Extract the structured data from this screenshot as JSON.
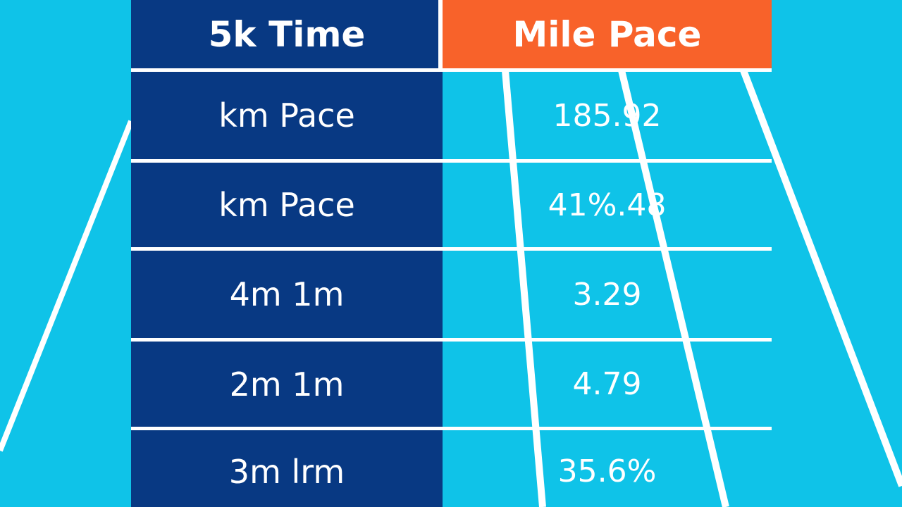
{
  "colors": {
    "background": "#0fc3e8",
    "left_column": "#083983",
    "header_accent": "#f8622a",
    "lines": "#ffffff"
  },
  "table": {
    "headers": {
      "time": "5k Time",
      "pace": "Mile Pace"
    },
    "rows": [
      {
        "time": "km Pace",
        "pace": "185.92"
      },
      {
        "time": "km Pace",
        "pace": "41%.48"
      },
      {
        "time": "4m 1m",
        "pace": "3.29"
      },
      {
        "time": "2m 1m",
        "pace": "4.79"
      },
      {
        "time": "3m lrm",
        "pace": "35.6%"
      }
    ]
  }
}
